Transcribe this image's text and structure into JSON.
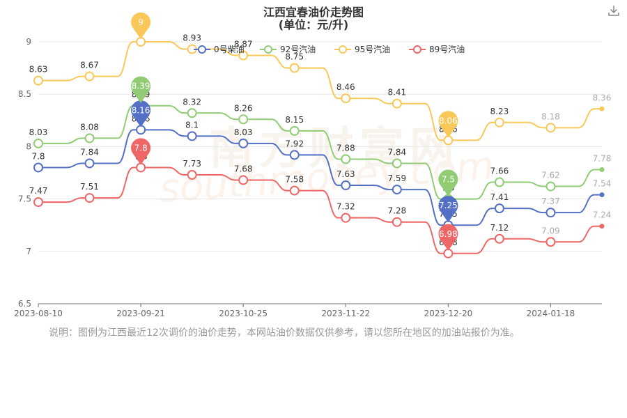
{
  "chart_data": {
    "type": "line",
    "title": "江西宜春油价走势图",
    "subtitle": "(单位：元/升)",
    "watermark": "南方财富网 southmoney.com",
    "ylim": [
      6.5,
      9
    ],
    "yticks": [
      "6.5",
      "7",
      "7.5",
      "8",
      "8.5",
      "9"
    ],
    "xlabels": [
      "2023-08-10",
      "2023-09-21",
      "2023-10-25",
      "2023-11-22",
      "2023-12-20",
      "2024-01-18"
    ],
    "x": [
      "2023-08-10",
      "2023-08-24",
      "2023-09-21",
      "2023-10-12",
      "2023-10-25",
      "2023-11-07",
      "2023-11-22",
      "2023-12-05",
      "2023-12-20",
      "2024-01-03",
      "2024-01-18",
      "2024-02-01"
    ],
    "legend_position": "top",
    "series": [
      {
        "name": "0号柴油",
        "color": "#5470c6",
        "values": [
          7.8,
          7.84,
          8.16,
          8.1,
          8.03,
          7.92,
          7.63,
          7.59,
          7.25,
          7.41,
          7.37,
          7.54
        ],
        "labels": [
          "7.8",
          "7.84",
          "8.16",
          "8.1",
          "8.03",
          "7.92",
          "7.63",
          "7.59",
          "7.25",
          "7.41",
          "7.37",
          "7.54"
        ],
        "max_pin": "8.16",
        "min_pin": "7.25"
      },
      {
        "name": "92号汽油",
        "color": "#91cc75",
        "values": [
          8.03,
          8.08,
          8.39,
          8.32,
          8.26,
          8.15,
          7.88,
          7.84,
          7.5,
          7.66,
          7.62,
          7.78
        ],
        "labels": [
          "8.03",
          "8.08",
          "8.39",
          "8.32",
          "8.26",
          "8.15",
          "7.88",
          "7.84",
          "7.5",
          "7.66",
          "7.62",
          "7.78"
        ],
        "max_pin": "8.39",
        "min_pin": "7.5"
      },
      {
        "name": "95号汽油",
        "color": "#fac858",
        "values": [
          8.63,
          8.67,
          9,
          8.93,
          8.87,
          8.75,
          8.46,
          8.41,
          8.06,
          8.23,
          8.18,
          8.36
        ],
        "labels": [
          "8.63",
          "8.67",
          "9",
          "8.93",
          "8.87",
          "8.75",
          "8.46",
          "8.41",
          "8.06",
          "8.23",
          "8.18",
          "8.36"
        ],
        "max_pin": "9",
        "min_pin": "8.06"
      },
      {
        "name": "89号汽油",
        "color": "#ee6666",
        "values": [
          7.47,
          7.51,
          7.8,
          7.73,
          7.68,
          7.58,
          7.32,
          7.28,
          6.98,
          7.12,
          7.09,
          7.24
        ],
        "labels": [
          "7.47",
          "7.51",
          "7.8",
          "7.73",
          "7.68",
          "7.58",
          "7.32",
          "7.28",
          "6.98",
          "7.12",
          "7.09",
          "7.24"
        ],
        "max_pin": "7.8",
        "min_pin": "6.98"
      }
    ]
  },
  "note": "说明：图例为江西最近12次调价的油价走势，本网站油价数据仅供参考，请以您所在地区的加油站报价为准。",
  "icons": {
    "download": "download-icon"
  }
}
